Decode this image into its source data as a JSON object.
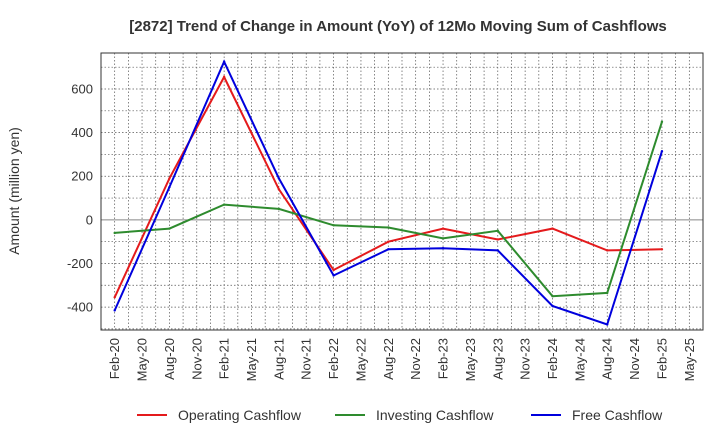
{
  "chart_data": {
    "type": "line",
    "title": "[2872]  Trend of Change in Amount (YoY) of 12Mo Moving Sum of Cashflows",
    "xlabel": "",
    "ylabel": "Amount (million yen)",
    "ylim": [
      -505,
      765
    ],
    "yticks": [
      -400,
      -200,
      0,
      200,
      400,
      600
    ],
    "ytick_labels": [
      "-400",
      "-200",
      "0",
      "200",
      "400",
      "600"
    ],
    "x": [
      "Feb-20",
      "May-20",
      "Aug-20",
      "Nov-20",
      "Feb-21",
      "May-21",
      "Aug-21",
      "Nov-21",
      "Feb-22",
      "May-22",
      "Aug-22",
      "Nov-22",
      "Feb-23",
      "May-23",
      "Aug-23",
      "Nov-23",
      "Feb-24",
      "May-24",
      "Aug-24",
      "Nov-24",
      "Feb-25",
      "May-25"
    ],
    "grid": true,
    "legend_position": "bottom",
    "series": [
      {
        "name": "Operating Cashflow",
        "color": "#e41a1c",
        "values": [
          -355,
          null,
          190,
          null,
          655,
          null,
          140,
          null,
          -230,
          null,
          -100,
          null,
          -40,
          null,
          -90,
          null,
          -40,
          null,
          -140,
          null,
          -135,
          null
        ]
      },
      {
        "name": "Investing Cashflow",
        "color": "#2e8b2e",
        "values": [
          -60,
          null,
          -40,
          null,
          70,
          null,
          50,
          null,
          -25,
          null,
          -35,
          null,
          -85,
          null,
          -50,
          null,
          -350,
          null,
          -335,
          null,
          450,
          null
        ]
      },
      {
        "name": "Free Cashflow",
        "color": "#0000dd",
        "values": [
          -415,
          null,
          150,
          null,
          725,
          null,
          190,
          null,
          -255,
          null,
          -135,
          null,
          -130,
          null,
          -140,
          null,
          -395,
          null,
          -480,
          null,
          315,
          null
        ]
      }
    ]
  }
}
